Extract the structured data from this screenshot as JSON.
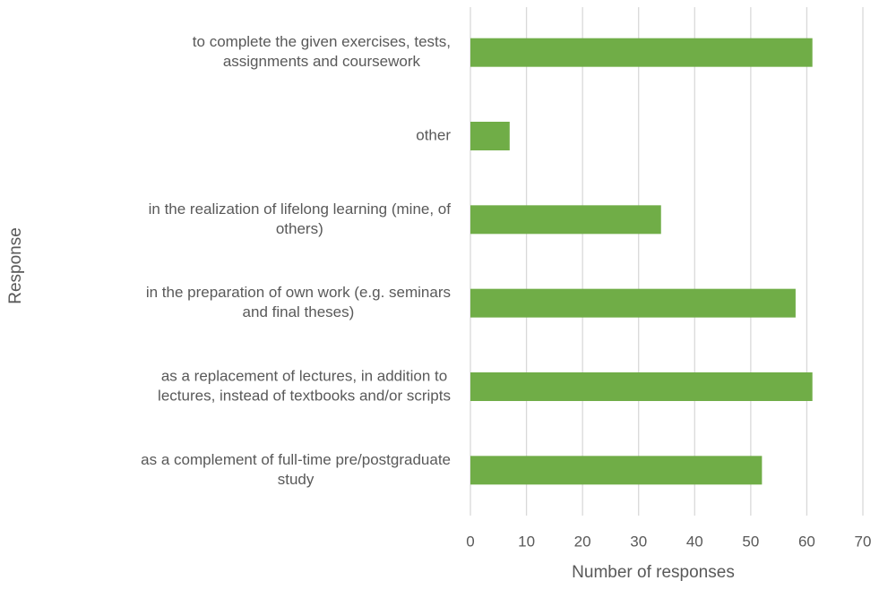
{
  "chart_data": {
    "type": "barh",
    "categories": [
      [
        "to complete the given exercises, tests,",
        "assignments and coursework"
      ],
      [
        "other"
      ],
      [
        "in the realization of lifelong learning (mine, of",
        "others)"
      ],
      [
        "in the preparation of own work (e.g. seminars",
        "and final theses)"
      ],
      [
        "as a replacement of lectures, in addition to",
        "lectures, instead of textbooks and/or scripts"
      ],
      [
        "as a complement of full-time pre/postgraduate",
        "study"
      ]
    ],
    "values": [
      61,
      7,
      34,
      58,
      61,
      52
    ],
    "color": "#70ad47",
    "xlim": [
      0,
      70
    ],
    "xticks": [
      0,
      10,
      20,
      30,
      40,
      50,
      60,
      70
    ],
    "xlabel": "Number of responses",
    "ylabel": "Response",
    "grid": true
  }
}
